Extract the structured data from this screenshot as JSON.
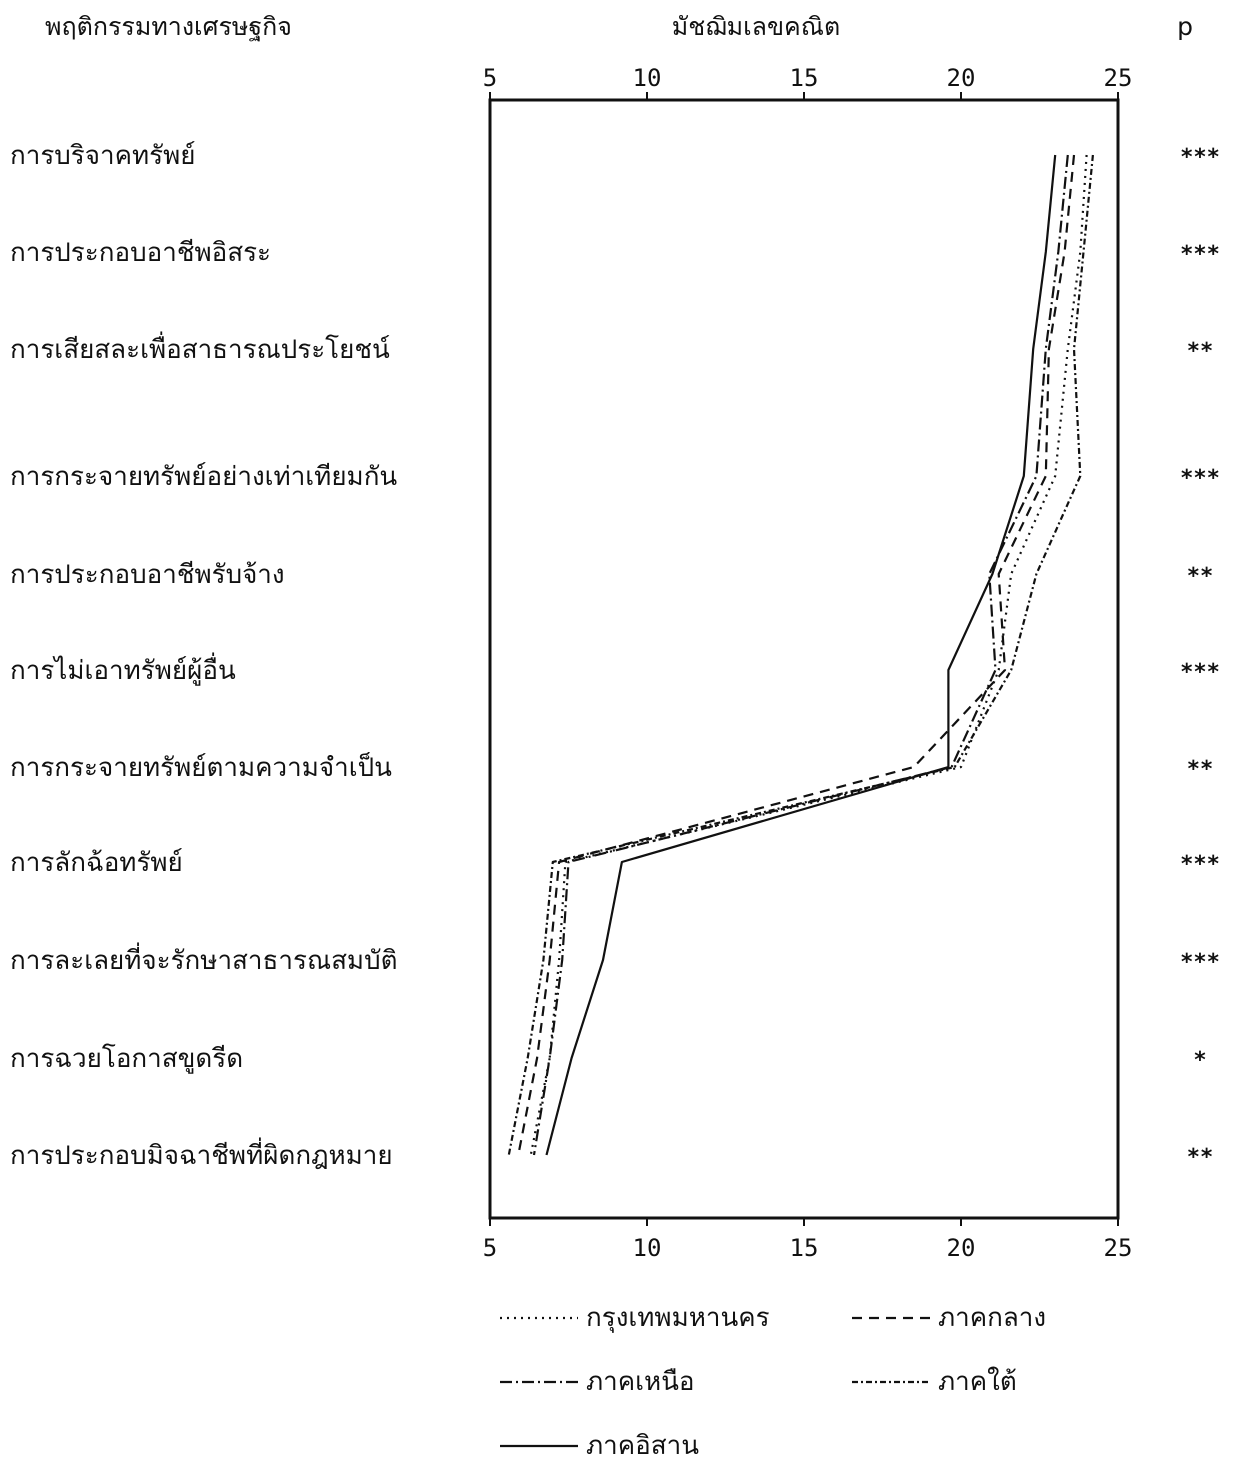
{
  "headers": {
    "behavior_title": "พฤติกรรมทางเศรษฐกิจ",
    "mean_title": "มัชฌิมเลขคณิต",
    "p_title": "p"
  },
  "chart_data": {
    "type": "line",
    "orientation": "horizontal",
    "xlim": [
      5,
      25
    ],
    "ticks": [
      "5",
      "10",
      "15",
      "20",
      "25"
    ],
    "grid": false,
    "legend_position": "bottom",
    "categories": [
      "การบริจาคทรัพย์",
      "การประกอบอาชีพอิสระ",
      "การเสียสละเพื่อสาธารณประโยชน์",
      "การกระจายทรัพย์อย่างเท่าเทียมกัน",
      "การประกอบอาชีพรับจ้าง",
      "การไม่เอาทรัพย์ผู้อื่น",
      "การกระจายทรัพย์ตามความจำเป็น",
      "การลักฉ้อทรัพย์",
      "การละเลยที่จะรักษาสาธารณสมบัติ",
      "การฉวยโอกาสขูดรีด",
      "การประกอบมิจฉาชีพที่ผิดกฎหมาย"
    ],
    "significance": [
      "***",
      "***",
      "**",
      "***",
      "**",
      "***",
      "**",
      "***",
      "***",
      "*",
      "**"
    ],
    "series": [
      {
        "name": "กรุงเทพมหานคร",
        "dash": "dotted",
        "values": [
          24.0,
          23.8,
          23.4,
          23.0,
          21.6,
          21.2,
          20.0,
          7.4,
          7.2,
          6.9,
          6.3
        ]
      },
      {
        "name": "ภาคกลาง",
        "dash": "dashed",
        "values": [
          23.6,
          23.3,
          22.8,
          22.7,
          21.2,
          21.4,
          18.5,
          7.2,
          6.9,
          6.5,
          5.9
        ]
      },
      {
        "name": "ภาคเหนือ",
        "dash": "dashdot",
        "values": [
          23.4,
          23.1,
          22.7,
          22.4,
          20.9,
          21.1,
          19.7,
          7.5,
          7.3,
          6.9,
          6.4
        ]
      },
      {
        "name": "ภาคใต้",
        "dash": "dashdot2",
        "values": [
          24.2,
          23.9,
          23.6,
          23.8,
          22.4,
          21.6,
          19.8,
          7.0,
          6.7,
          6.2,
          5.6
        ]
      },
      {
        "name": "ภาคอิสาน",
        "dash": "solid",
        "values": [
          23.0,
          22.7,
          22.3,
          22.0,
          21.0,
          19.6,
          19.6,
          9.2,
          8.6,
          7.6,
          6.8
        ]
      }
    ]
  }
}
